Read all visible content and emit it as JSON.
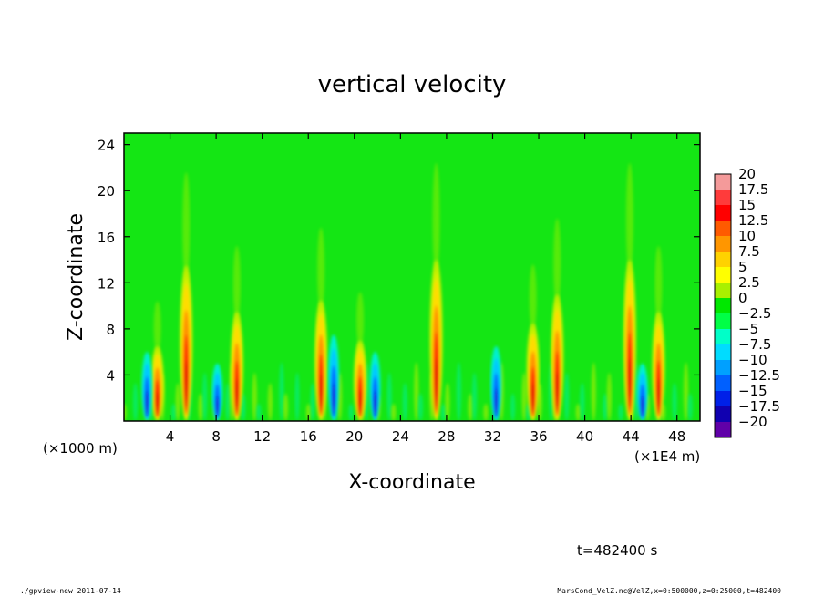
{
  "chart_data": {
    "type": "heatmap",
    "title": "vertical velocity",
    "xlabel": "X-coordinate",
    "ylabel": "Z-coordinate",
    "x_unit_left": "(×1000 m)",
    "x_unit_right": "(×1E4 m)",
    "xlim": [
      0,
      50
    ],
    "ylim": [
      0,
      25
    ],
    "x_ticks": [
      "4",
      "8",
      "12",
      "16",
      "20",
      "24",
      "28",
      "32",
      "36",
      "40",
      "44",
      "48"
    ],
    "y_ticks": [
      "4",
      "8",
      "12",
      "16",
      "20",
      "24"
    ],
    "colorbar": {
      "labels": [
        "20",
        "17.5",
        "15",
        "12.5",
        "10",
        "7.5",
        "5",
        "2.5",
        "0",
        "−2.5",
        "−5",
        "−7.5",
        "−10",
        "−12.5",
        "−15",
        "−17.5",
        "−20"
      ],
      "colors": [
        "#f49a9a",
        "#ff3b3b",
        "#ff0000",
        "#ff5a00",
        "#ff9600",
        "#ffd200",
        "#ffff00",
        "#a8f000",
        "#00e800",
        "#00ff46",
        "#00ffc8",
        "#00dcff",
        "#00a0ff",
        "#0060ff",
        "#0020e8",
        "#1000b0",
        "#6000a8"
      ]
    },
    "features": [
      {
        "x": 2.9,
        "type": "updraft",
        "top": 6.5
      },
      {
        "x": 5.4,
        "type": "updraft",
        "top": 13.5
      },
      {
        "x": 9.8,
        "type": "updraft",
        "top": 9.5
      },
      {
        "x": 17.1,
        "type": "updraft",
        "top": 10.5
      },
      {
        "x": 20.5,
        "type": "updraft",
        "top": 7.0
      },
      {
        "x": 27.1,
        "type": "updraft",
        "top": 14.0
      },
      {
        "x": 35.5,
        "type": "updraft",
        "top": 8.5
      },
      {
        "x": 37.6,
        "type": "updraft",
        "top": 11.0
      },
      {
        "x": 43.9,
        "type": "updraft",
        "top": 14.0
      },
      {
        "x": 46.4,
        "type": "updraft",
        "top": 9.5
      },
      {
        "x": 2.0,
        "type": "downdraft",
        "top": 6.0
      },
      {
        "x": 8.1,
        "type": "downdraft",
        "top": 5.0
      },
      {
        "x": 18.2,
        "type": "downdraft",
        "top": 7.5
      },
      {
        "x": 21.8,
        "type": "downdraft",
        "top": 6.0
      },
      {
        "x": 32.3,
        "type": "downdraft",
        "top": 6.5
      },
      {
        "x": 45.0,
        "type": "downdraft",
        "top": 5.0
      }
    ]
  },
  "footer": {
    "time_label": "t=482400 s",
    "left_caption": "./gpview-new 2011-07-14",
    "right_caption": "MarsCond_VelZ.nc@VelZ,x=0:500000,z=0:25000,t=482400"
  }
}
